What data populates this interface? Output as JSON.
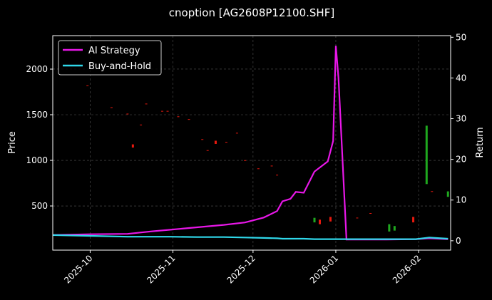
{
  "chart_data": {
    "type": "candlestick",
    "title": "cnoption [AG2608P12100.SHF]",
    "ylabel": "Price",
    "y2label": "Return",
    "xlim": [
      "2025-09-17",
      "2026-02-13"
    ],
    "xticks": [
      {
        "value": "2025-10-01",
        "label": "2025-10"
      },
      {
        "value": "2025-11-01",
        "label": "2025-11"
      },
      {
        "value": "2025-12-01",
        "label": "2025-12"
      },
      {
        "value": "2026-01-01",
        "label": "2026-01"
      },
      {
        "value": "2026-02-01",
        "label": "2026-02"
      }
    ],
    "ylim": [
      16,
      2367
    ],
    "yticks": [
      500,
      1000,
      1500,
      2000
    ],
    "y2lim": [
      -2.3,
      50.4
    ],
    "y2ticks": [
      0,
      10,
      20,
      30,
      40,
      50
    ],
    "grid": true,
    "legend": "upper left",
    "up_color": "#1fa81f",
    "down_color": "#e8190e",
    "candles": {
      "x": [
        "2025-09-30",
        "2025-10-09",
        "2025-10-15",
        "2025-10-17",
        "2025-10-20",
        "2025-10-22",
        "2025-10-28",
        "2025-10-30",
        "2025-11-03",
        "2025-11-07",
        "2025-11-12",
        "2025-11-14",
        "2025-11-17",
        "2025-11-21",
        "2025-11-25",
        "2025-11-28",
        "2025-12-03",
        "2025-12-08",
        "2025-12-10",
        "2025-12-24",
        "2025-12-26",
        "2025-12-30",
        "2026-01-09",
        "2026-01-14",
        "2026-01-21",
        "2026-01-23",
        "2026-01-30",
        "2026-02-04",
        "2026-02-06",
        "2026-02-12"
      ],
      "open": [
        1822,
        1582,
        1512,
        1175,
        1392,
        1622,
        1542,
        1542,
        1482,
        1452,
        1232,
        1112,
        1215,
        1202,
        1302,
        1002,
        912,
        942,
        842,
        320,
        350,
        380,
        372,
        422,
        220,
        230,
        380,
        740,
        662,
        600
      ],
      "close": [
        1818,
        1578,
        1508,
        1140,
        1388,
        1618,
        1538,
        1538,
        1478,
        1448,
        1228,
        1108,
        1180,
        1198,
        1298,
        998,
        908,
        938,
        838,
        370,
        300,
        330,
        368,
        418,
        300,
        280,
        320,
        1380,
        658,
        660
      ]
    },
    "x": [
      "2025-09-17",
      "2025-10-01",
      "2025-10-15",
      "2025-10-24",
      "2025-10-31",
      "2025-11-10",
      "2025-11-20",
      "2025-11-28",
      "2025-12-05",
      "2025-12-10",
      "2025-12-12",
      "2025-12-15",
      "2025-12-17",
      "2025-12-20",
      "2025-12-24",
      "2025-12-29",
      "2025-12-31",
      "2026-01-01",
      "2026-01-02",
      "2026-01-05",
      "2026-01-12",
      "2026-01-20",
      "2026-01-31",
      "2026-02-05",
      "2026-02-12"
    ],
    "series": [
      {
        "name": "AI Strategy",
        "color": "#e817e8",
        "axis": "y2",
        "values": [
          1.4,
          1.6,
          1.7,
          2.3,
          2.7,
          3.3,
          3.9,
          4.5,
          5.7,
          7.3,
          9.7,
          10.3,
          12.0,
          11.8,
          17.0,
          19.5,
          24.5,
          47.9,
          40.0,
          0.3,
          0.3,
          0.3,
          0.4,
          0.6,
          0.4
        ]
      },
      {
        "name": "Buy-and-Hold",
        "color": "#2fd8ea",
        "axis": "y2",
        "values": [
          1.4,
          1.2,
          1.0,
          1.0,
          1.0,
          0.9,
          0.9,
          0.8,
          0.7,
          0.6,
          0.5,
          0.5,
          0.5,
          0.5,
          0.4,
          0.4,
          0.4,
          0.4,
          0.4,
          0.4,
          0.4,
          0.4,
          0.4,
          0.8,
          0.5
        ]
      }
    ]
  }
}
